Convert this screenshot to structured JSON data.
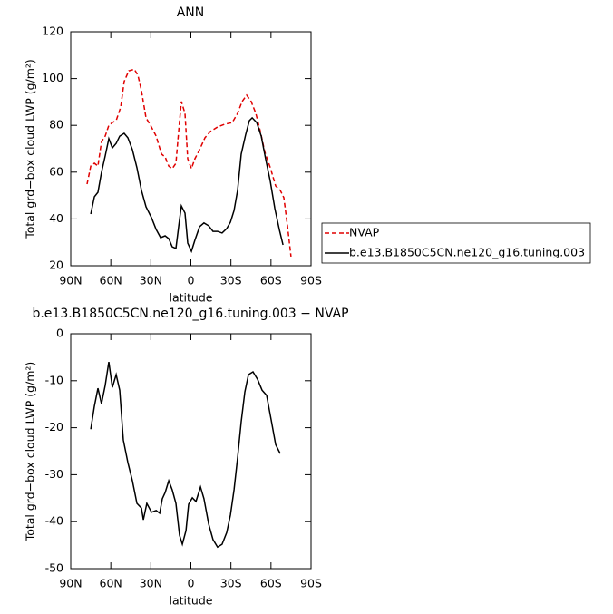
{
  "chart_data": [
    {
      "type": "line",
      "title": "ANN",
      "xlabel": "latitude",
      "ylabel": "Total grd−box cloud LWP (g/m²)",
      "xlim": [
        90,
        -90
      ],
      "ylim": [
        20,
        120
      ],
      "xticks": [
        {
          "value": 90,
          "label": "90N"
        },
        {
          "value": 60,
          "label": "60N"
        },
        {
          "value": 30,
          "label": "30N"
        },
        0,
        {
          "value": -30,
          "label": "30S"
        },
        {
          "value": -60,
          "label": "60S"
        },
        {
          "value": -90,
          "label": "90S"
        }
      ],
      "yticks": [
        20,
        40,
        60,
        80,
        100,
        120
      ],
      "legend": "right",
      "series": [
        {
          "name": "NVAP",
          "color": "#e00000",
          "line_style": "dashed",
          "x": [
            77.8,
            75,
            72.3,
            69.6,
            67,
            64.2,
            61.5,
            58.8,
            56,
            52.6,
            50,
            46.5,
            42.4,
            39.7,
            37,
            33.6,
            30.2,
            26,
            22,
            19.3,
            16.6,
            14,
            11.2,
            9.2,
            7.1,
            4.4,
            2.4,
            -0.4,
            -3,
            -6.5,
            -10.5,
            -14.6,
            -20,
            -25.5,
            -31,
            -35,
            -38.4,
            -41.8,
            -45.2,
            -48.6,
            -52,
            -55.4,
            -59.5,
            -63.5,
            -67,
            -69.6,
            -72.4,
            -75
          ],
          "values": [
            54.9,
            62.6,
            63.8,
            62.6,
            73,
            75.4,
            80,
            81.2,
            82,
            87.8,
            98.7,
            103.3,
            104,
            101.4,
            94.8,
            83.2,
            80,
            75.4,
            67.7,
            66.5,
            62.6,
            61.5,
            63.8,
            77.4,
            90.2,
            85.1,
            65.7,
            61.5,
            65.7,
            69.6,
            74.7,
            77.4,
            79.3,
            80.5,
            81.2,
            85.1,
            90.2,
            92.9,
            90.2,
            85.1,
            77.4,
            68.5,
            61.9,
            54.1,
            52.2,
            49.1,
            36.7,
            23.9
          ]
        },
        {
          "name": "b.e13.B1850C5CN.ne120_g16.tuning.003",
          "color": "#000000",
          "line_style": "solid",
          "x": [
            75,
            72.3,
            69.6,
            67,
            64.2,
            61.5,
            58.8,
            56,
            53.3,
            50,
            47.2,
            43.8,
            40.4,
            37,
            33.6,
            29.5,
            26,
            22.7,
            19.3,
            16.6,
            14,
            11.2,
            9.2,
            7.1,
            4.4,
            2.4,
            -0.4,
            -3,
            -6.5,
            -9.8,
            -13.3,
            -16.6,
            -20,
            -23.4,
            -26.8,
            -29.6,
            -32.3,
            -35,
            -37.7,
            -41.1,
            -43.8,
            -45.9,
            -49.3,
            -52.7,
            -56,
            -59.5,
            -62.9,
            -66.2,
            -69
          ],
          "values": [
            42.1,
            49.5,
            51.4,
            59.9,
            66.9,
            74.3,
            70.4,
            72.3,
            75.4,
            76.6,
            74.7,
            69.6,
            61.9,
            52.2,
            45.2,
            40.5,
            35.5,
            32,
            32.8,
            31.6,
            28.1,
            27.4,
            36.7,
            45.6,
            42.5,
            29.7,
            26.2,
            30.9,
            36.7,
            38.3,
            37.1,
            34.7,
            34.7,
            34,
            35.9,
            38.6,
            43.6,
            52.2,
            67.7,
            76.2,
            82,
            83.2,
            81.2,
            75.4,
            65.7,
            56,
            44.4,
            35.5,
            28.9
          ]
        }
      ]
    },
    {
      "type": "line",
      "title": "b.e13.B1850C5CN.ne120_g16.tuning.003 − NVAP",
      "xlabel": "latitude",
      "ylabel": "Total grd−box cloud LWP (g/m²)",
      "xlim": [
        90,
        -90
      ],
      "ylim": [
        -50,
        0
      ],
      "xticks": [
        {
          "value": 90,
          "label": "90N"
        },
        {
          "value": 60,
          "label": "60N"
        },
        {
          "value": 30,
          "label": "30N"
        },
        0,
        {
          "value": -30,
          "label": "30S"
        },
        {
          "value": -60,
          "label": "60S"
        },
        {
          "value": -90,
          "label": "90S"
        }
      ],
      "yticks": [
        -50,
        -40,
        -30,
        -20,
        -10,
        0
      ],
      "series": [
        {
          "color": "#000000",
          "line_style": "solid",
          "x": [
            75,
            72.3,
            69.6,
            67,
            64.2,
            61.5,
            58.8,
            56,
            53.3,
            50.6,
            47.2,
            43.8,
            40.4,
            37,
            35.6,
            33,
            29.5,
            26,
            23.4,
            21.4,
            19.3,
            16.6,
            14,
            11.2,
            8.5,
            6.4,
            3.7,
            1.7,
            -1.1,
            -3.8,
            -7.2,
            -9.8,
            -13.3,
            -16.6,
            -20,
            -23.4,
            -26.8,
            -29.6,
            -32.3,
            -35,
            -37.7,
            -40.4,
            -43.1,
            -46.5,
            -49.9,
            -53.3,
            -56.7,
            -60.1,
            -63.5,
            -66.9
          ],
          "values": [
            -20.3,
            -15.4,
            -11.6,
            -14.9,
            -11,
            -6,
            -11.4,
            -8.7,
            -12,
            -22.6,
            -27.4,
            -31.3,
            -36.1,
            -37.1,
            -39.6,
            -36.1,
            -38,
            -37.6,
            -38.2,
            -35.1,
            -33.8,
            -31.3,
            -33.2,
            -36.1,
            -42.9,
            -44.8,
            -41.9,
            -36.3,
            -34.9,
            -35.7,
            -32.6,
            -35.1,
            -40.5,
            -43.8,
            -45.4,
            -44.8,
            -42.3,
            -38.6,
            -33.2,
            -26.4,
            -18.7,
            -12.4,
            -8.7,
            -8.1,
            -9.7,
            -12,
            -13.1,
            -18.3,
            -23.6,
            -25.5
          ]
        }
      ]
    }
  ]
}
